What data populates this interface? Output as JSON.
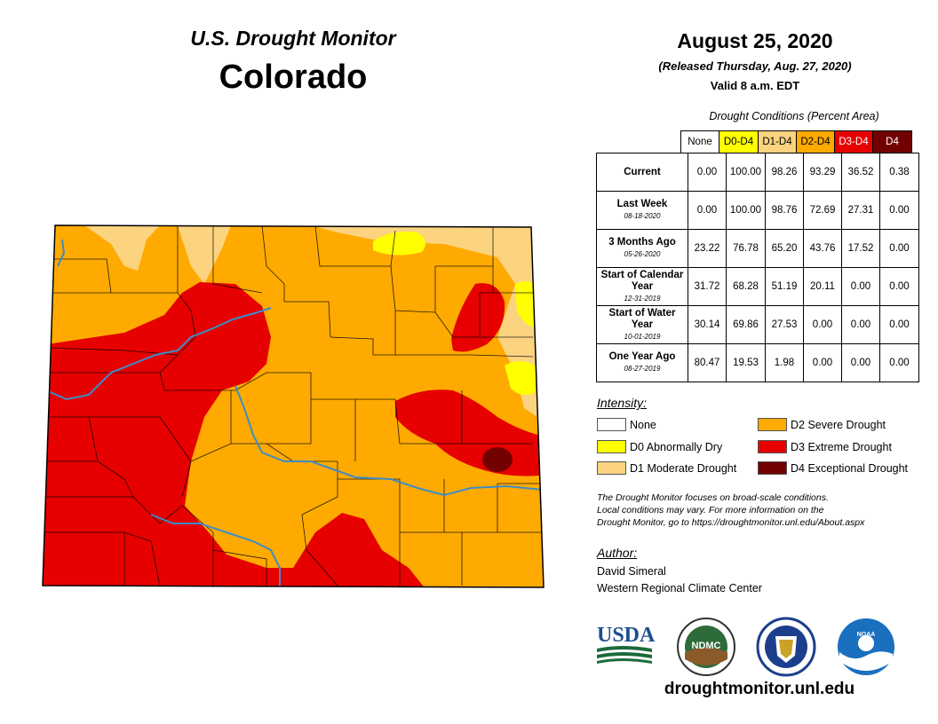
{
  "header": {
    "subtitle": "U.S. Drought Monitor",
    "state": "Colorado",
    "date": "August 25, 2020",
    "released": "(Released Thursday, Aug. 27, 2020)",
    "valid": "Valid 8 a.m. EDT"
  },
  "conditions": {
    "title": "Drought Conditions (Percent Area)",
    "columns": [
      {
        "label": "None",
        "bg": "#ffffff",
        "fg": "#000000"
      },
      {
        "label": "D0-D4",
        "bg": "#ffff00",
        "fg": "#000000"
      },
      {
        "label": "D1-D4",
        "bg": "#fcd37f",
        "fg": "#000000"
      },
      {
        "label": "D2-D4",
        "bg": "#ffaa00",
        "fg": "#000000"
      },
      {
        "label": "D3-D4",
        "bg": "#e60000",
        "fg": "#ffffff"
      },
      {
        "label": "D4",
        "bg": "#730000",
        "fg": "#ffffff"
      }
    ],
    "rows": [
      {
        "label": "Current",
        "date": "",
        "values": [
          "0.00",
          "100.00",
          "98.26",
          "93.29",
          "36.52",
          "0.38"
        ]
      },
      {
        "label": "Last Week",
        "date": "08-18-2020",
        "values": [
          "0.00",
          "100.00",
          "98.76",
          "72.69",
          "27.31",
          "0.00"
        ]
      },
      {
        "label": "3 Months Ago",
        "date": "05-26-2020",
        "values": [
          "23.22",
          "76.78",
          "65.20",
          "43.76",
          "17.52",
          "0.00"
        ]
      },
      {
        "label": "Start of Calendar Year",
        "date": "12-31-2019",
        "values": [
          "31.72",
          "68.28",
          "51.19",
          "20.11",
          "0.00",
          "0.00"
        ]
      },
      {
        "label": "Start of Water Year",
        "date": "10-01-2019",
        "values": [
          "30.14",
          "69.86",
          "27.53",
          "0.00",
          "0.00",
          "0.00"
        ]
      },
      {
        "label": "One Year Ago",
        "date": "08-27-2019",
        "values": [
          "80.47",
          "19.53",
          "1.98",
          "0.00",
          "0.00",
          "0.00"
        ]
      }
    ]
  },
  "legend": {
    "title": "Intensity:",
    "items": [
      {
        "label": "None",
        "color": "#ffffff"
      },
      {
        "label": "D0 Abnormally Dry",
        "color": "#ffff00"
      },
      {
        "label": "D1 Moderate Drought",
        "color": "#fcd37f"
      },
      {
        "label": "D2 Severe Drought",
        "color": "#ffaa00"
      },
      {
        "label": "D3 Extreme Drought",
        "color": "#e60000"
      },
      {
        "label": "D4 Exceptional Drought",
        "color": "#730000"
      }
    ]
  },
  "note": {
    "line1": "The Drought Monitor focuses on broad-scale conditions.",
    "line2": "Local conditions may vary. For more information on the",
    "line3": "Drought Monitor, go to https://droughtmonitor.unl.edu/About.aspx"
  },
  "author": {
    "title": "Author:",
    "name": "David Simeral",
    "org": "Western Regional Climate Center"
  },
  "logos": {
    "usda": "USDA",
    "ndmc": "NDMC",
    "noaa": "NOAA"
  },
  "website": "droughtmonitor.unl.edu"
}
